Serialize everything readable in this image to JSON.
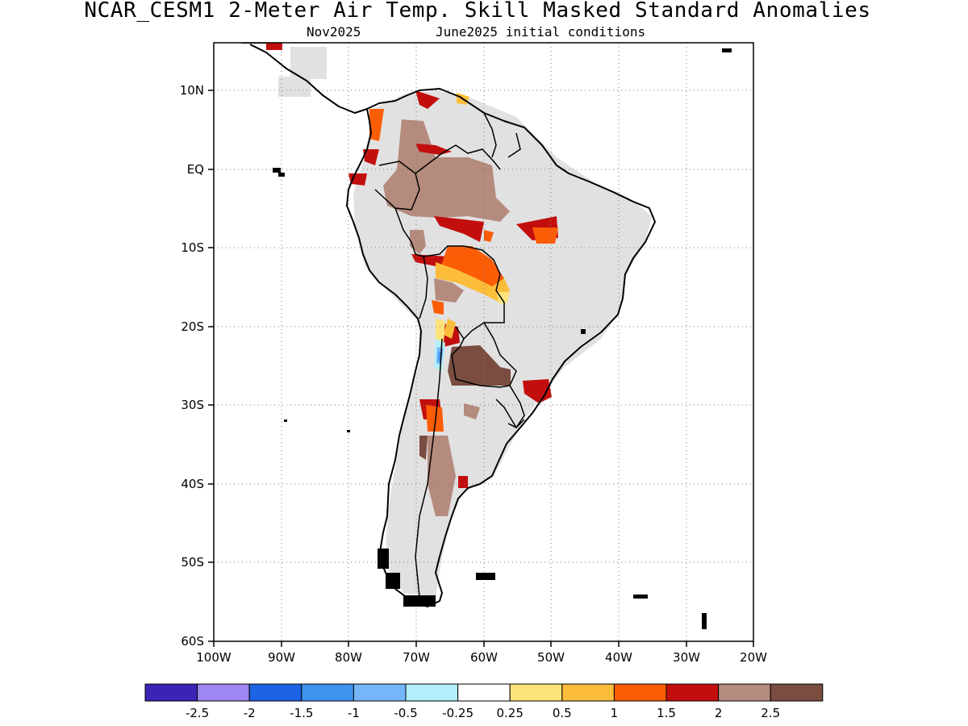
{
  "header": {
    "title": "NCAR_CESM1 2-Meter Air Temp. Skill Masked Standard Anomalies",
    "target_month": "Nov2025",
    "init": "June2025 initial conditions"
  },
  "map": {
    "lat_ticks": [
      "10N",
      "EQ",
      "10S",
      "20S",
      "30S",
      "40S",
      "50S",
      "60S"
    ],
    "lon_ticks": [
      "100W",
      "90W",
      "80W",
      "70W",
      "60W",
      "50W",
      "40W",
      "30W",
      "20W"
    ],
    "lon_range": [
      -100,
      -20
    ],
    "lat_range": [
      -60,
      16
    ],
    "grid": true,
    "mask_color": "#e1e1e1"
  },
  "colorbar": {
    "colors": [
      "#3b24b5",
      "#9e87f0",
      "#1d63e6",
      "#3f93ef",
      "#76b6f8",
      "#b2effb",
      "#ffffff",
      "#fde37a",
      "#fcbd3a",
      "#fb5d06",
      "#c20f0e",
      "#b58b7d",
      "#7a4d40"
    ],
    "labels": [
      "-2.5",
      "-2",
      "-1.5",
      "-1",
      "-0.5",
      "-0.25",
      "0.25",
      "0.5",
      "1",
      "1.5",
      "2",
      "2.5"
    ]
  }
}
